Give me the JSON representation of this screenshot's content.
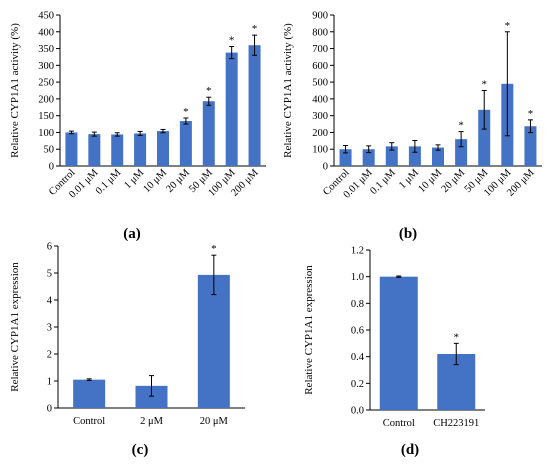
{
  "chart_data": [
    {
      "id": "a",
      "type": "bar",
      "panel_label": "(a)",
      "ylabel": "Relative CYP1A1 activity (%)",
      "categories": [
        "Control",
        "0.01 μM",
        "0.1 μM",
        "1 μM",
        "10 μM",
        "20 μM",
        "50 μM",
        "100 μM",
        "200 μM"
      ],
      "values": [
        100,
        95,
        94,
        97,
        104,
        134,
        193,
        338,
        360
      ],
      "errors": [
        4,
        6,
        5,
        6,
        5,
        9,
        12,
        18,
        30
      ],
      "significant": [
        false,
        false,
        false,
        false,
        false,
        true,
        true,
        true,
        true
      ],
      "marker": "*",
      "ylim": [
        0,
        450
      ],
      "yticks": [
        "0",
        "50",
        "100",
        "150",
        "200",
        "250",
        "300",
        "350",
        "400",
        "450"
      ],
      "tick_step": 50,
      "rotated_xticks": true,
      "bar_color": "#4472c4"
    },
    {
      "id": "b",
      "type": "bar",
      "panel_label": "(b)",
      "ylabel": "Relative CYP1A1 activity (%)",
      "categories": [
        "Control",
        "0.01 μM",
        "0.1 μM",
        "1 μM",
        "10 μM",
        "20 μM",
        "50 μM",
        "100 μM",
        "200 μM"
      ],
      "values": [
        100,
        100,
        117,
        117,
        110,
        160,
        335,
        490,
        237
      ],
      "errors": [
        22,
        20,
        22,
        35,
        16,
        45,
        115,
        310,
        38
      ],
      "significant": [
        false,
        false,
        false,
        false,
        false,
        true,
        true,
        true,
        true
      ],
      "marker": "*",
      "ylim": [
        0,
        900
      ],
      "yticks": [
        "0",
        "100",
        "200",
        "300",
        "400",
        "500",
        "600",
        "700",
        "800",
        "900"
      ],
      "tick_step": 100,
      "rotated_xticks": true,
      "bar_color": "#4472c4"
    },
    {
      "id": "c",
      "type": "bar",
      "panel_label": "(c)",
      "ylabel": "Relative CYP1A1 expression",
      "categories": [
        "Control",
        "2 μM",
        "20 μM"
      ],
      "values": [
        1.05,
        0.82,
        4.93
      ],
      "errors": [
        0.03,
        0.38,
        0.73
      ],
      "significant": [
        false,
        false,
        true
      ],
      "marker": "*",
      "ylim": [
        0,
        6
      ],
      "yticks": [
        "0",
        "1",
        "2",
        "3",
        "4",
        "5",
        "6"
      ],
      "tick_step": 1,
      "rotated_xticks": false,
      "bar_color": "#4472c4"
    },
    {
      "id": "d",
      "type": "bar",
      "panel_label": "(d)",
      "ylabel": "Relative CYP1A1 expression",
      "categories": [
        "Control",
        "CH223191"
      ],
      "values": [
        1.0,
        0.42
      ],
      "errors": [
        0.005,
        0.08
      ],
      "significant": [
        false,
        true
      ],
      "marker": "*",
      "ylim": [
        0,
        1.2
      ],
      "yticks": [
        "0.0",
        "0.2",
        "0.4",
        "0.6",
        "0.8",
        "1.0",
        "1.2"
      ],
      "tick_step": 0.2,
      "rotated_xticks": false,
      "bar_color": "#4472c4"
    }
  ]
}
